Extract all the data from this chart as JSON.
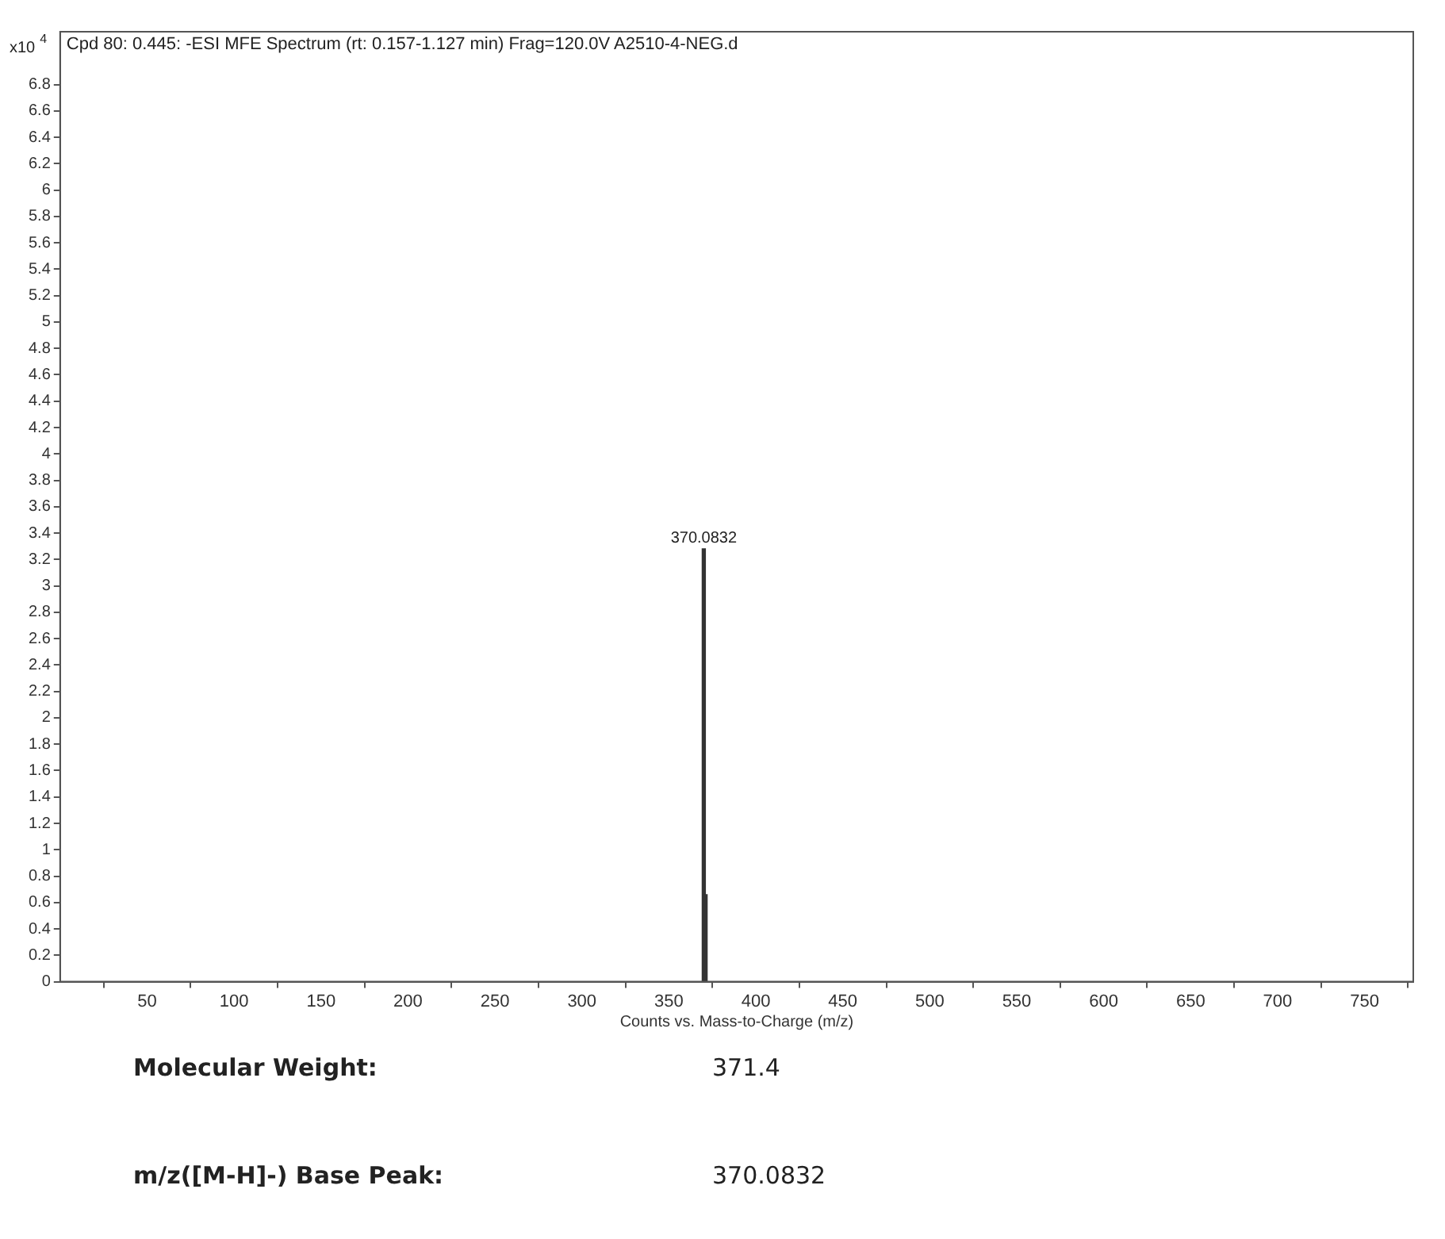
{
  "chart_data": {
    "type": "bar",
    "title": "Cpd 80: 0.445: -ESI MFE Spectrum (rt: 0.157-1.127 min) Frag=120.0V A2510-4-NEG.d",
    "xlabel": "Counts vs. Mass-to-Charge (m/z)",
    "ylabel": "x10$^{4}$",
    "x": [
      370.0832,
      371.1
    ],
    "series": [
      {
        "color": "#333333",
        "values": [
          3.28,
          0.66
        ]
      }
    ],
    "xlim": [
      0,
      778
    ],
    "xticks": [
      50,
      100,
      150,
      200,
      250,
      300,
      350,
      400,
      450,
      500,
      550,
      600,
      650,
      700,
      750
    ],
    "ylim": [
      0,
      7.2
    ],
    "yticks": [
      0,
      0.2,
      0.4,
      0.6,
      0.8,
      1,
      1.2,
      1.4,
      1.6,
      1.8,
      2,
      2.2,
      2.4,
      2.6,
      2.8,
      3,
      3.2,
      3.4,
      3.6,
      3.8,
      4,
      4.2,
      4.4,
      4.6,
      4.8,
      5,
      5.2,
      5.4,
      5.6,
      5.8,
      6,
      6.2,
      6.4,
      6.6,
      6.8
    ],
    "grid": false,
    "legend": false,
    "annotations": [
      {
        "text": "370.0832",
        "x": 370.0832,
        "y": 3.28
      },
      "Molecular Weight:",
      "371.4",
      "m/z([M-H]-) Base Peak:",
      "370.0832"
    ]
  }
}
